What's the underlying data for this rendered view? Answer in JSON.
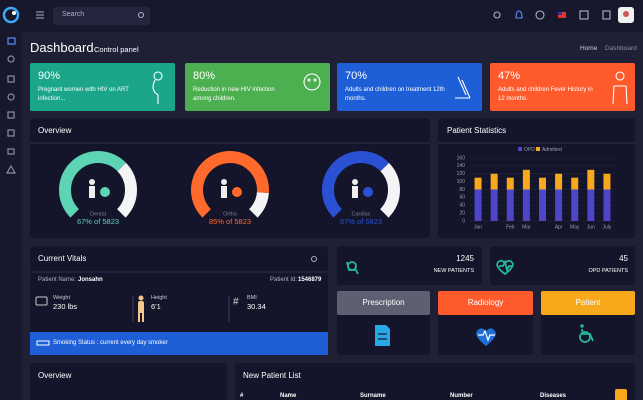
{
  "topbar": {
    "search_placeholder": "Search"
  },
  "header": {
    "title": "Dashboard",
    "subtitle": "Control panel",
    "breadcrumb": [
      "Home",
      "Dashboard"
    ]
  },
  "cards": [
    {
      "value": "90%",
      "text": "Pregnant women with HIV on ART infection..."
    },
    {
      "value": "80%",
      "text": "Reduction in new HIV infection among children."
    },
    {
      "value": "70%",
      "text": "Adults and children on treatment 12th months."
    },
    {
      "value": "47%",
      "text": "Adults and children Fever History in 12 months."
    }
  ],
  "overview": {
    "title": "Overview",
    "gauges": [
      {
        "name": "Dental",
        "percent": 67,
        "label": "67% of 5823",
        "color": "#5dd5b4"
      },
      {
        "name": "Ortho",
        "percent": 85,
        "label": "85% of 5823",
        "color": "#ff6a2c"
      },
      {
        "name": "Cardiac",
        "percent": 67,
        "label": "67% of 5823",
        "color": "#2a50d4"
      }
    ]
  },
  "patient_statistics": {
    "type": "bar",
    "stacked": true,
    "title": "Patient Statistics",
    "categories": [
      "Jan",
      null,
      "Feb",
      "Mar",
      null,
      "Apr",
      "May",
      "Jun",
      "July"
    ],
    "series": [
      {
        "name": "OPD",
        "color": "#4e45c9",
        "values": [
          80,
          80,
          80,
          80,
          80,
          80,
          80,
          80,
          80
        ]
      },
      {
        "name": "Admitted",
        "color": "#f7a81b",
        "values": [
          30,
          40,
          30,
          50,
          30,
          40,
          30,
          50,
          40
        ]
      }
    ],
    "ylim": [
      0,
      160
    ],
    "yticks": [
      0,
      20,
      40,
      60,
      80,
      100,
      120,
      140,
      160
    ],
    "grid": true
  },
  "vitals": {
    "title": "Current Vitals",
    "patient_name_label": "Patient Name:",
    "patient_name": "Jonsahn",
    "patient_id_label": "Patient Id:",
    "patient_id": "1546879",
    "metrics": [
      {
        "label": "Weight",
        "value": "230 lbs"
      },
      {
        "label": "Height",
        "value": "6'1"
      },
      {
        "label": "BMI",
        "value": "30.34"
      }
    ],
    "smoking_status": "Smoking Status : current every day smoker"
  },
  "stats": [
    {
      "value": "1245",
      "label": "NEW PATIENTS"
    },
    {
      "value": "45",
      "label": "OPD PATIENTS"
    }
  ],
  "actions": [
    "Prescription",
    "Radiology",
    "Patient"
  ],
  "bottom": {
    "overview_title": "Overview",
    "patient_list": {
      "title": "New Patient List",
      "columns": [
        "#",
        "Name",
        "Surname",
        "Number",
        "Diseases"
      ]
    }
  }
}
